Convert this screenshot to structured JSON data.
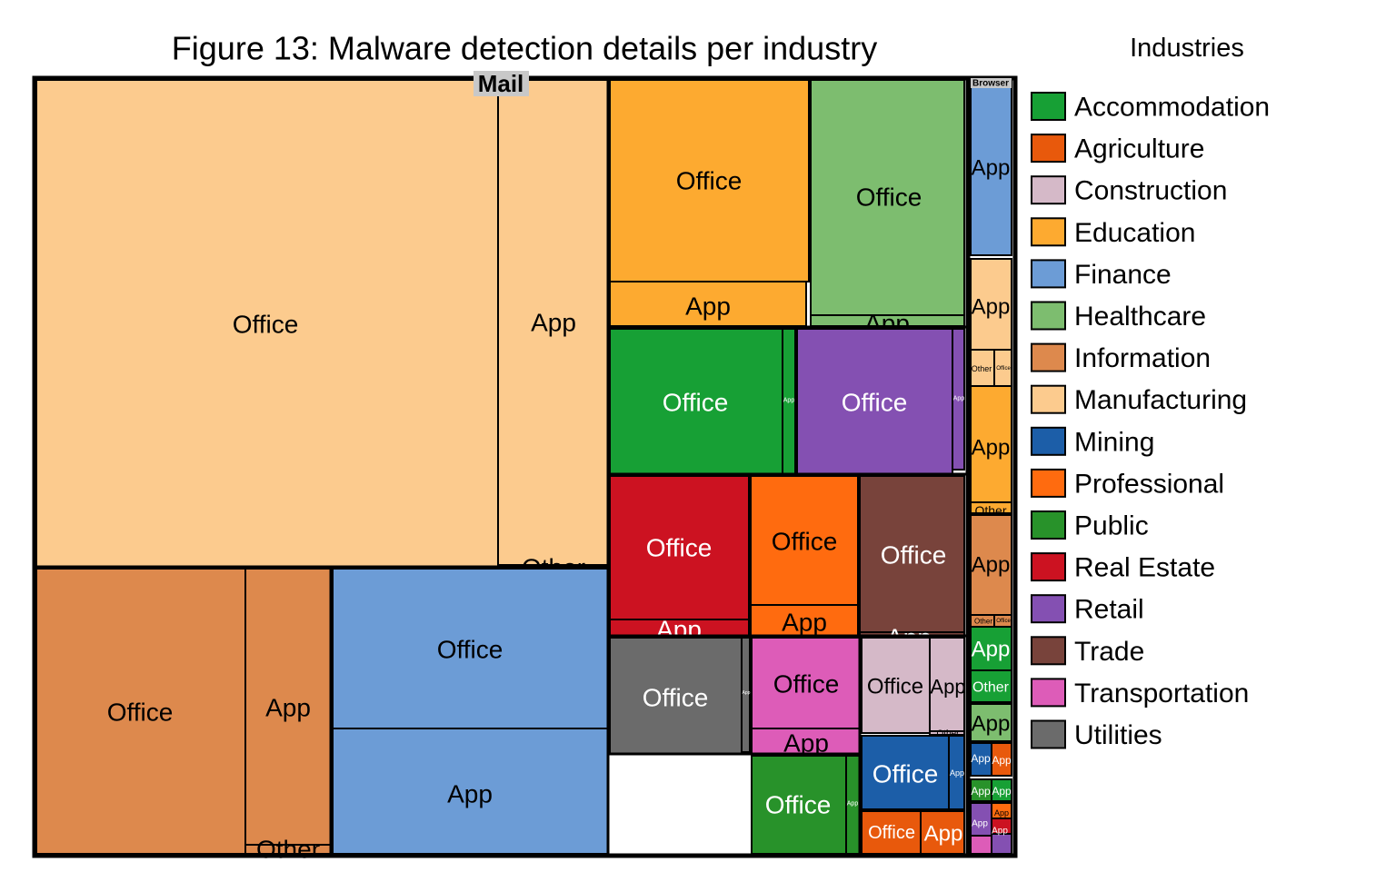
{
  "chart_data": {
    "type": "treemap",
    "title": "Figure 13: Malware detection details per industry",
    "group_labels": [
      "Mail",
      "Browser"
    ],
    "legend": {
      "title": "Industries",
      "placement": "right",
      "items": [
        {
          "name": "Accommodation",
          "color": "#17a035"
        },
        {
          "name": "Agriculture",
          "color": "#e8590c"
        },
        {
          "name": "Construction",
          "color": "#d5b9c8"
        },
        {
          "name": "Education",
          "color": "#fdaa30"
        },
        {
          "name": "Finance",
          "color": "#6c9cd6"
        },
        {
          "name": "Healthcare",
          "color": "#7dbd6f"
        },
        {
          "name": "Information",
          "color": "#dd894d"
        },
        {
          "name": "Manufacturing",
          "color": "#fccb8e"
        },
        {
          "name": "Mining",
          "color": "#1c5ea8"
        },
        {
          "name": "Professional",
          "color": "#ff6b0f"
        },
        {
          "name": "Public",
          "color": "#28922a"
        },
        {
          "name": "Real Estate",
          "color": "#cc1221"
        },
        {
          "name": "Retail",
          "color": "#8450b2"
        },
        {
          "name": "Trade",
          "color": "#78433b"
        },
        {
          "name": "Transportation",
          "color": "#dd5cb8"
        },
        {
          "name": "Utilities",
          "color": "#6b6b6b"
        }
      ]
    },
    "industries": [
      {
        "name": "Manufacturing",
        "cells": [
          {
            "label": "Office"
          },
          {
            "label": "App"
          },
          {
            "label": "Other"
          }
        ]
      },
      {
        "name": "Information",
        "cells": [
          {
            "label": "Office"
          },
          {
            "label": "App"
          },
          {
            "label": "Other"
          }
        ]
      },
      {
        "name": "Finance",
        "cells": [
          {
            "label": "Office"
          },
          {
            "label": "App"
          }
        ]
      },
      {
        "name": "Education",
        "cells": [
          {
            "label": "Office"
          },
          {
            "label": "App"
          }
        ]
      },
      {
        "name": "Healthcare",
        "cells": [
          {
            "label": "Office"
          },
          {
            "label": "App"
          }
        ]
      },
      {
        "name": "Accommodation",
        "cells": [
          {
            "label": "Office"
          },
          {
            "label": "App"
          }
        ]
      },
      {
        "name": "Retail",
        "cells": [
          {
            "label": "Office"
          },
          {
            "label": "App"
          }
        ]
      },
      {
        "name": "Real Estate",
        "cells": [
          {
            "label": "Office"
          },
          {
            "label": "App"
          }
        ]
      },
      {
        "name": "Professional",
        "cells": [
          {
            "label": "Office"
          },
          {
            "label": "App"
          }
        ]
      },
      {
        "name": "Trade",
        "cells": [
          {
            "label": "Office"
          },
          {
            "label": "App"
          }
        ]
      },
      {
        "name": "Utilities",
        "cells": [
          {
            "label": "Office"
          },
          {
            "label": "App"
          }
        ]
      },
      {
        "name": "Transportation",
        "cells": [
          {
            "label": "Office"
          },
          {
            "label": "App"
          }
        ]
      },
      {
        "name": "Construction",
        "cells": [
          {
            "label": "Office"
          },
          {
            "label": "App"
          },
          {
            "label": "Other"
          }
        ]
      },
      {
        "name": "Public",
        "cells": [
          {
            "label": "Office"
          },
          {
            "label": "App"
          }
        ]
      },
      {
        "name": "Mining",
        "cells": [
          {
            "label": "Office"
          },
          {
            "label": "App"
          }
        ]
      },
      {
        "name": "Agriculture",
        "cells": [
          {
            "label": "Office"
          },
          {
            "label": "App"
          }
        ]
      }
    ],
    "browser_cells": [
      {
        "industry": "Finance",
        "label": "App"
      },
      {
        "industry": "Manufacturing",
        "label": "App"
      },
      {
        "industry": "Manufacturing",
        "label": "Other"
      },
      {
        "industry": "Manufacturing",
        "label": "Office"
      },
      {
        "industry": "Education",
        "label": "App"
      },
      {
        "industry": "Education",
        "label": "Other"
      },
      {
        "industry": "Information",
        "label": "App"
      },
      {
        "industry": "Information",
        "label": "Other"
      },
      {
        "industry": "Information",
        "label": "Office"
      },
      {
        "industry": "Accommodation",
        "label": "App"
      },
      {
        "industry": "Accommodation",
        "label": "Other"
      },
      {
        "industry": "Healthcare",
        "label": "App"
      },
      {
        "industry": "Mining",
        "label": "App"
      },
      {
        "industry": "Agriculture",
        "label": "App"
      },
      {
        "industry": "Public",
        "label": "App"
      },
      {
        "industry": "Retail",
        "label": "App"
      },
      {
        "industry": "Accommodation",
        "label": "App"
      },
      {
        "industry": "Professional",
        "label": "App"
      },
      {
        "industry": "Real Estate",
        "label": "App"
      }
    ]
  }
}
